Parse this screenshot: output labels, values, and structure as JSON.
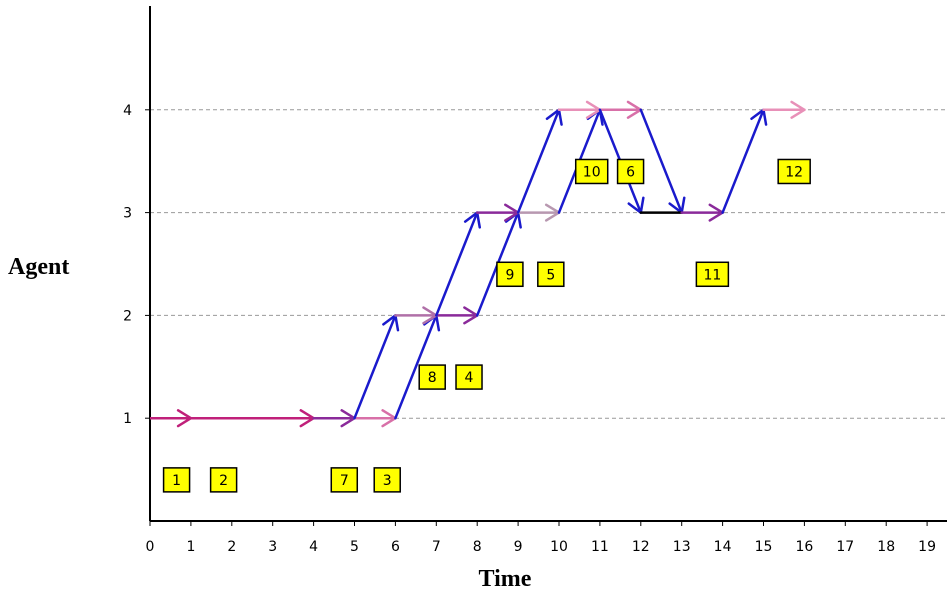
{
  "chart_data": {
    "type": "line",
    "xlabel": "Time",
    "ylabel": "Agent",
    "xlim": [
      0,
      19
    ],
    "ylim": [
      0,
      4.9
    ],
    "x_ticks": [
      "0",
      "1",
      "2",
      "3",
      "4",
      "5",
      "6",
      "7",
      "8",
      "9",
      "10",
      "11",
      "12",
      "13",
      "14",
      "15",
      "16",
      "17",
      "18",
      "19"
    ],
    "y_ticks": [
      "1",
      "2",
      "3",
      "4"
    ],
    "grid": "horizontal dashed",
    "colors": {
      "blue": "#1a1acc",
      "magenta": "#c0207a",
      "violet": "#8a2a9a",
      "pink": "#d870a8",
      "lightpink": "#e890b8",
      "mauve": "#b070a8",
      "dusty": "#b898b0",
      "black": "#000000",
      "badge_fill": "#ffff00"
    },
    "arrows": [
      {
        "from": [
          0,
          1
        ],
        "to": [
          1,
          1
        ],
        "color": "magenta",
        "head": true
      },
      {
        "from": [
          1,
          1
        ],
        "to": [
          4,
          1
        ],
        "color": "magenta",
        "head": true
      },
      {
        "from": [
          4,
          1
        ],
        "to": [
          5,
          1
        ],
        "color": "violet",
        "head": true
      },
      {
        "from": [
          5,
          1
        ],
        "to": [
          6,
          1
        ],
        "color": "pink",
        "head": true
      },
      {
        "from": [
          5,
          1
        ],
        "to": [
          6,
          2
        ],
        "color": "blue",
        "head": true
      },
      {
        "from": [
          6,
          1
        ],
        "to": [
          7,
          2
        ],
        "color": "blue",
        "head": true
      },
      {
        "from": [
          6,
          2
        ],
        "to": [
          7,
          2
        ],
        "color": "mauve",
        "head": true
      },
      {
        "from": [
          7,
          2
        ],
        "to": [
          8,
          2
        ],
        "color": "violet",
        "head": true
      },
      {
        "from": [
          7,
          2
        ],
        "to": [
          8,
          3
        ],
        "color": "blue",
        "head": true
      },
      {
        "from": [
          8,
          2
        ],
        "to": [
          9,
          3
        ],
        "color": "blue",
        "head": true
      },
      {
        "from": [
          8,
          3
        ],
        "to": [
          9,
          3
        ],
        "color": "violet",
        "head": true
      },
      {
        "from": [
          9,
          3
        ],
        "to": [
          10,
          3
        ],
        "color": "dusty",
        "head": true
      },
      {
        "from": [
          9,
          3
        ],
        "to": [
          10,
          4
        ],
        "color": "blue",
        "head": true
      },
      {
        "from": [
          10,
          3
        ],
        "to": [
          11,
          4
        ],
        "color": "blue",
        "head": true
      },
      {
        "from": [
          10,
          4
        ],
        "to": [
          11,
          4
        ],
        "color": "lightpink",
        "head": true
      },
      {
        "from": [
          11,
          4
        ],
        "to": [
          12,
          4
        ],
        "color": "pink",
        "head": true
      },
      {
        "from": [
          11,
          4
        ],
        "to": [
          12,
          3
        ],
        "color": "blue",
        "head": true
      },
      {
        "from": [
          12,
          4
        ],
        "to": [
          13,
          3
        ],
        "color": "blue",
        "head": true
      },
      {
        "from": [
          12,
          3
        ],
        "to": [
          13,
          3
        ],
        "color": "black",
        "head": false
      },
      {
        "from": [
          13,
          3
        ],
        "to": [
          14,
          3
        ],
        "color": "violet",
        "head": true
      },
      {
        "from": [
          14,
          3
        ],
        "to": [
          15,
          4
        ],
        "color": "blue",
        "head": true
      },
      {
        "from": [
          15,
          4
        ],
        "to": [
          16,
          4
        ],
        "color": "lightpink",
        "head": true
      }
    ],
    "labels": [
      {
        "text": "1",
        "x": 0.65,
        "y": 0.4
      },
      {
        "text": "2",
        "x": 1.8,
        "y": 0.4
      },
      {
        "text": "7",
        "x": 4.75,
        "y": 0.4
      },
      {
        "text": "3",
        "x": 5.8,
        "y": 0.4
      },
      {
        "text": "8",
        "x": 6.9,
        "y": 1.4
      },
      {
        "text": "4",
        "x": 7.8,
        "y": 1.4
      },
      {
        "text": "9",
        "x": 8.8,
        "y": 2.4
      },
      {
        "text": "5",
        "x": 9.8,
        "y": 2.4
      },
      {
        "text": "10",
        "x": 10.8,
        "y": 3.4
      },
      {
        "text": "6",
        "x": 11.75,
        "y": 3.4
      },
      {
        "text": "11",
        "x": 13.75,
        "y": 2.4
      },
      {
        "text": "12",
        "x": 15.75,
        "y": 3.4
      }
    ]
  }
}
